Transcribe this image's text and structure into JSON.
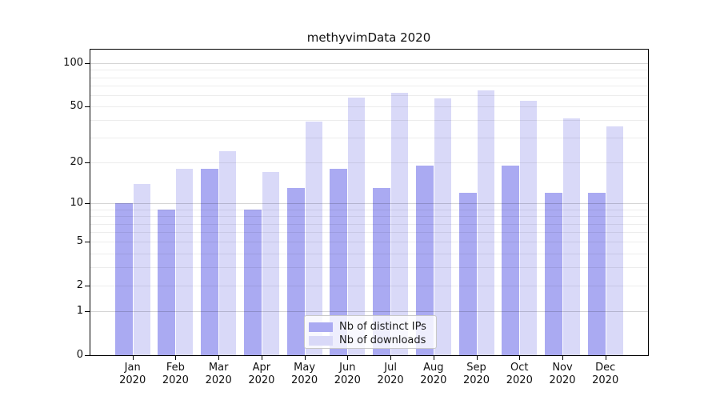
{
  "chart_data": {
    "type": "bar",
    "title": "methyvimData 2020",
    "categories": [
      "Jan",
      "Feb",
      "Mar",
      "Apr",
      "May",
      "Jun",
      "Jul",
      "Aug",
      "Sep",
      "Oct",
      "Nov",
      "Dec"
    ],
    "category_year": "2020",
    "series": [
      {
        "name": "Nb of distinct IPs",
        "color": "#aaaaf2",
        "values": [
          10,
          9,
          18,
          9,
          13,
          18,
          13,
          19,
          12,
          19,
          12,
          12
        ]
      },
      {
        "name": "Nb of downloads",
        "color": "#d9d9f8",
        "values": [
          14,
          18,
          24,
          17,
          39,
          58,
          62,
          57,
          65,
          55,
          41,
          36
        ]
      }
    ],
    "yscale": "log1p",
    "ytick_labels": [
      "0",
      "1",
      "2",
      "5",
      "10",
      "20",
      "50",
      "100"
    ],
    "ytick_values": [
      0,
      1,
      2,
      5,
      10,
      20,
      50,
      100
    ],
    "ylim": [
      0,
      124
    ],
    "xlabel": "",
    "ylabel": "",
    "legend_position": "bottom-center",
    "grid": true
  },
  "colors": {
    "distinct_ips": "#aaaaf2",
    "downloads": "#d9d9f8",
    "axis": "#000000",
    "grid_major": "rgba(0,0,0,0.17)",
    "grid_minor": "rgba(0,0,0,0.075)",
    "legend_border": "#c8c8c8",
    "background": "#ffffff"
  }
}
